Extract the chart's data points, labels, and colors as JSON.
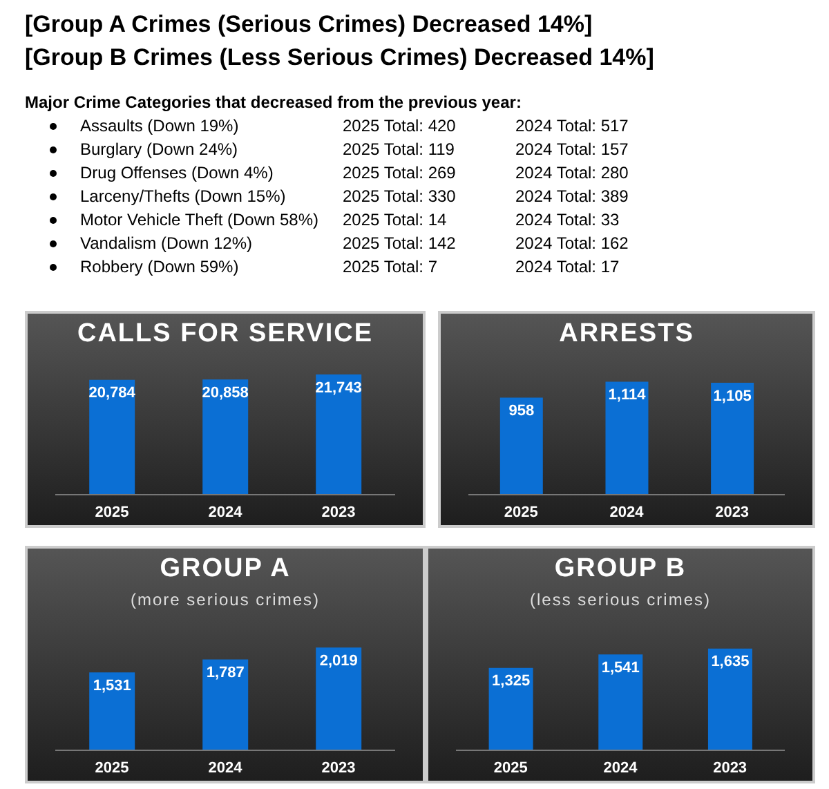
{
  "chart_data": [
    {
      "type": "other",
      "title": "[Group A Crimes (Serious Crimes) Decreased 14%]",
      "subtitle": "[Group B Crimes (Less Serious Crimes) Decreased 14%]",
      "annotations": [
        "Major Crime Categories that decreased from the previous year:",
        "Assaults (Down 19%)",
        "2025 Total: 420",
        "2024 Total: 517",
        "Burglary (Down 24%)",
        "2025 Total: 119",
        "2024 Total: 157",
        "Drug Offenses (Down 4%)",
        "2025 Total: 269",
        "2024 Total: 280",
        "Larceny/Thefts (Down 15%)",
        "2025 Total: 330",
        "2024 Total: 389",
        "Motor Vehicle Theft (Down 58%)",
        "2025 Total: 14",
        "2024 Total: 33",
        "Vandalism (Down 12%)",
        "2025 Total: 142",
        "2024 Total: 162",
        "Robbery (Down 59%)",
        "2025 Total: 7",
        "2024 Total: 17"
      ]
    },
    {
      "type": "bar",
      "title": "CALLS FOR SERVICE",
      "categories": [
        "2025",
        "2024",
        "2023"
      ],
      "values": [
        20784,
        20858,
        21743
      ],
      "value_labels": [
        "20,784",
        "20,858",
        "21,743"
      ],
      "color": "#0b6fd4"
    },
    {
      "type": "bar",
      "title": "ARRESTS",
      "categories": [
        "2025",
        "2024",
        "2023"
      ],
      "values": [
        958,
        1114,
        1105
      ],
      "value_labels": [
        "958",
        "1,114",
        "1,105"
      ],
      "color": "#0b6fd4"
    },
    {
      "type": "bar",
      "title": "GROUP A",
      "subtitle": "(more serious crimes)",
      "categories": [
        "2025",
        "2024",
        "2023"
      ],
      "values": [
        1531,
        1787,
        2019
      ],
      "value_labels": [
        "1,531",
        "1,787",
        "2,019"
      ],
      "color": "#0b6fd4"
    },
    {
      "type": "bar",
      "title": "GROUP B",
      "subtitle": "(less serious crimes)",
      "categories": [
        "2025",
        "2024",
        "2023"
      ],
      "values": [
        1325,
        1541,
        1635
      ],
      "value_labels": [
        "1,325",
        "1,541",
        "1,635"
      ],
      "color": "#0b6fd4"
    }
  ]
}
